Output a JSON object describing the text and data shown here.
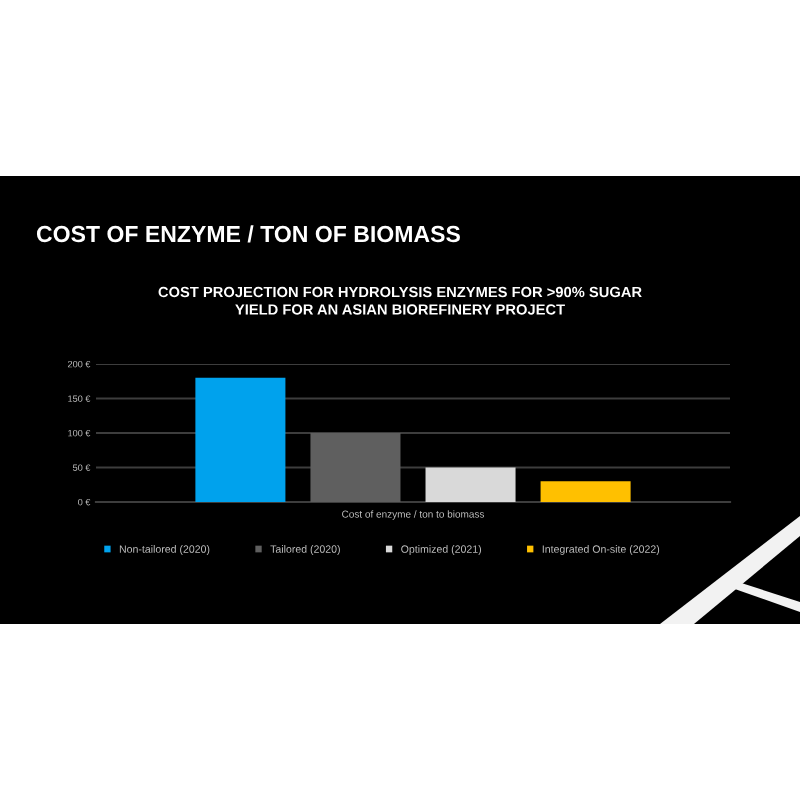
{
  "chart_data": {
    "type": "bar",
    "title": "COST OF ENZYME / TON OF BIOMASS",
    "subtitle": "COST PROJECTION FOR HYDROLYSIS ENZYMES FOR >90% SUGAR\nYIELD FOR AN ASIAN BIOREFINERY PROJECT",
    "categories": [
      "Cost of enzyme / ton to biomass"
    ],
    "series": [
      {
        "name": "Non-tailored (2020)",
        "color": "#00a2ed",
        "values": [
          180
        ]
      },
      {
        "name": "Tailored (2020)",
        "color": "#5f5f5f",
        "values": [
          100
        ]
      },
      {
        "name": "Optimized (2021)",
        "color": "#d9d9d9",
        "values": [
          50
        ]
      },
      {
        "name": "Integrated On-site (2022)",
        "color": "#ffc000",
        "values": [
          30
        ]
      }
    ],
    "ylim": [
      0,
      200
    ],
    "yticks": [
      {
        "value": 0,
        "label": "0 €"
      },
      {
        "value": 50,
        "label": "50 €"
      },
      {
        "value": 100,
        "label": "100 €"
      },
      {
        "value": 150,
        "label": "150 €"
      },
      {
        "value": 200,
        "label": "200 €"
      }
    ],
    "grid": "y",
    "legend": "bottom"
  }
}
